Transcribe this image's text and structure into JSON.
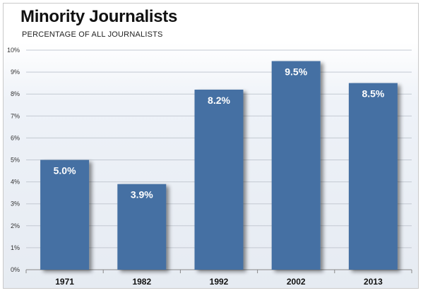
{
  "chart_data": {
    "type": "bar",
    "title": "Minority Journalists",
    "subtitle": "PERCENTAGE OF ALL JOURNALISTS",
    "categories": [
      "1971",
      "1982",
      "1992",
      "2002",
      "2013"
    ],
    "values": [
      5.0,
      3.9,
      8.2,
      9.5,
      8.5
    ],
    "data_labels": [
      "5.0%",
      "3.9%",
      "8.2%",
      "9.5%",
      "8.5%"
    ],
    "yticks": [
      0,
      1,
      2,
      3,
      4,
      5,
      6,
      7,
      8,
      9,
      10
    ],
    "ytick_labels": [
      "0%",
      "1%",
      "2%",
      "3%",
      "4%",
      "5%",
      "6%",
      "7%",
      "8%",
      "9%",
      "10%"
    ],
    "ylim": [
      0,
      10
    ],
    "grid": true,
    "bar_color": "#4470a3",
    "xlabel": "",
    "ylabel": ""
  }
}
